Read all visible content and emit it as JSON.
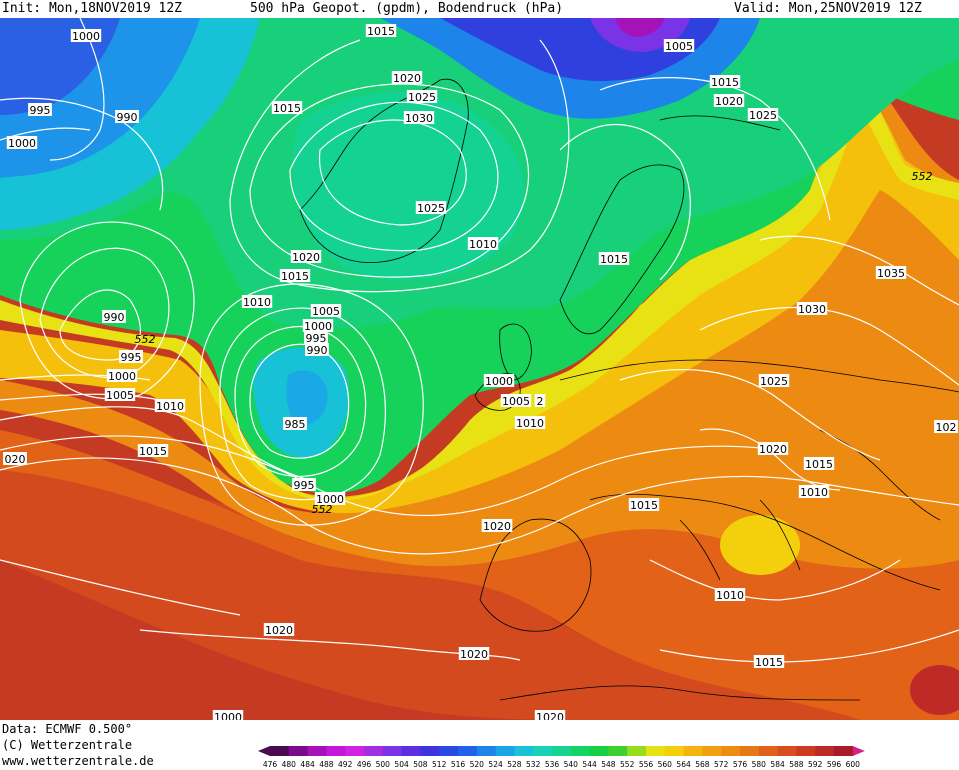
{
  "header": {
    "init": "Init: Mon,18NOV2019 12Z",
    "title": "500 hPa Geopot. (gpdm), Bodendruck (hPa)",
    "valid": "Valid: Mon,25NOV2019 12Z"
  },
  "footer": {
    "data": "Data: ECMWF  0.500°",
    "copyright": "(C) Wetterzentrale",
    "website": "www.wetterzentrale.de"
  },
  "legend": {
    "levels": [
      "476",
      "480",
      "484",
      "488",
      "492",
      "496",
      "500",
      "504",
      "508",
      "512",
      "516",
      "520",
      "524",
      "528",
      "532",
      "536",
      "540",
      "544",
      "548",
      "552",
      "556",
      "560",
      "564",
      "568",
      "572",
      "576",
      "580",
      "584",
      "588",
      "592",
      "596",
      "600"
    ],
    "colors": [
      "#4a0a50",
      "#7a0c8c",
      "#a512b8",
      "#c417d8",
      "#cf24e2",
      "#a330e0",
      "#7a34e6",
      "#5a30e0",
      "#3d34de",
      "#2a48e4",
      "#1f62e8",
      "#1d84ea",
      "#1ba4e6",
      "#1ac2d8",
      "#18d2b6",
      "#16d48e",
      "#14d468",
      "#18d046",
      "#3cd030",
      "#98dc1e",
      "#e6e214",
      "#f4d00c",
      "#f4b40e",
      "#f0a010",
      "#ec8c12",
      "#e67816",
      "#e0621a",
      "#d84e1e",
      "#cc3a22",
      "#bc2a26",
      "#a81c2a",
      "#d81e8a"
    ]
  },
  "isobar_labels": [
    {
      "id": "l1000-nw",
      "text": "1000"
    },
    {
      "id": "l990-nw",
      "text": "990"
    },
    {
      "id": "l995-w",
      "text": "995"
    },
    {
      "id": "l1000-w",
      "text": "1000"
    },
    {
      "id": "l1015-ice",
      "text": "1015"
    },
    {
      "id": "l1015-n",
      "text": "1015"
    },
    {
      "id": "l1020-gl",
      "text": "1020"
    },
    {
      "id": "l1025-gl",
      "text": "1025"
    },
    {
      "id": "l1030-gl",
      "text": "1030"
    },
    {
      "id": "l1025-sv",
      "text": "1025"
    },
    {
      "id": "l1005-ne",
      "text": "1005"
    },
    {
      "id": "l1015-ne",
      "text": "1015"
    },
    {
      "id": "l1020-ne",
      "text": "1020"
    },
    {
      "id": "l1025-ne",
      "text": "1025"
    },
    {
      "id": "l1010-ns",
      "text": "1010"
    },
    {
      "id": "l1020-is",
      "text": "1020"
    },
    {
      "id": "l1015-is",
      "text": "1015"
    },
    {
      "id": "l1010-atl",
      "text": "1010"
    },
    {
      "id": "l1015-no",
      "text": "1015"
    },
    {
      "id": "l990-low",
      "text": "990"
    },
    {
      "id": "l995-low",
      "text": "995"
    },
    {
      "id": "l1000-low",
      "text": "1000"
    },
    {
      "id": "l1005-low",
      "text": "1005"
    },
    {
      "id": "l1010-low",
      "text": "1010"
    },
    {
      "id": "l1015-low",
      "text": "1015"
    },
    {
      "id": "l1020-sw",
      "text": "1020"
    },
    {
      "id": "l1005-c",
      "text": "1005"
    },
    {
      "id": "l1000-c",
      "text": "1000"
    },
    {
      "id": "l995-c",
      "text": "995"
    },
    {
      "id": "l990-c",
      "text": "990"
    },
    {
      "id": "l985-c",
      "text": "985"
    },
    {
      "id": "l995-cs",
      "text": "995"
    },
    {
      "id": "l1000-cs",
      "text": "1000"
    },
    {
      "id": "l1000-uk",
      "text": "1000"
    },
    {
      "id": "l1005-uk",
      "text": "1005"
    },
    {
      "id": "l1010-uk",
      "text": "1010"
    },
    {
      "id": "l1035-ru",
      "text": "1035"
    },
    {
      "id": "l1030-ru",
      "text": "1030"
    },
    {
      "id": "l1025-eu",
      "text": "1025"
    },
    {
      "id": "l1020-eu",
      "text": "1020"
    },
    {
      "id": "l1015-eu",
      "text": "1015"
    },
    {
      "id": "l1010-eu",
      "text": "1010"
    },
    {
      "id": "l1015-fr",
      "text": "1015"
    },
    {
      "id": "l1020-ib",
      "text": "1020"
    },
    {
      "id": "l1010-med",
      "text": "1010"
    },
    {
      "id": "l1015-me",
      "text": "1015"
    },
    {
      "id": "l1020-atl",
      "text": "1020"
    },
    {
      "id": "l1020-af",
      "text": "1020"
    },
    {
      "id": "l1020-edge",
      "text": "020"
    },
    {
      "id": "l102-edge",
      "text": "102"
    },
    {
      "id": "l552-ne",
      "text": "552"
    },
    {
      "id": "l552-w",
      "text": "552"
    },
    {
      "id": "l552-c",
      "text": "552"
    },
    {
      "id": "l2-uk",
      "text": "2"
    },
    {
      "id": "l1000-bot",
      "text": "1000"
    },
    {
      "id": "l1020-bot",
      "text": "1020"
    }
  ]
}
